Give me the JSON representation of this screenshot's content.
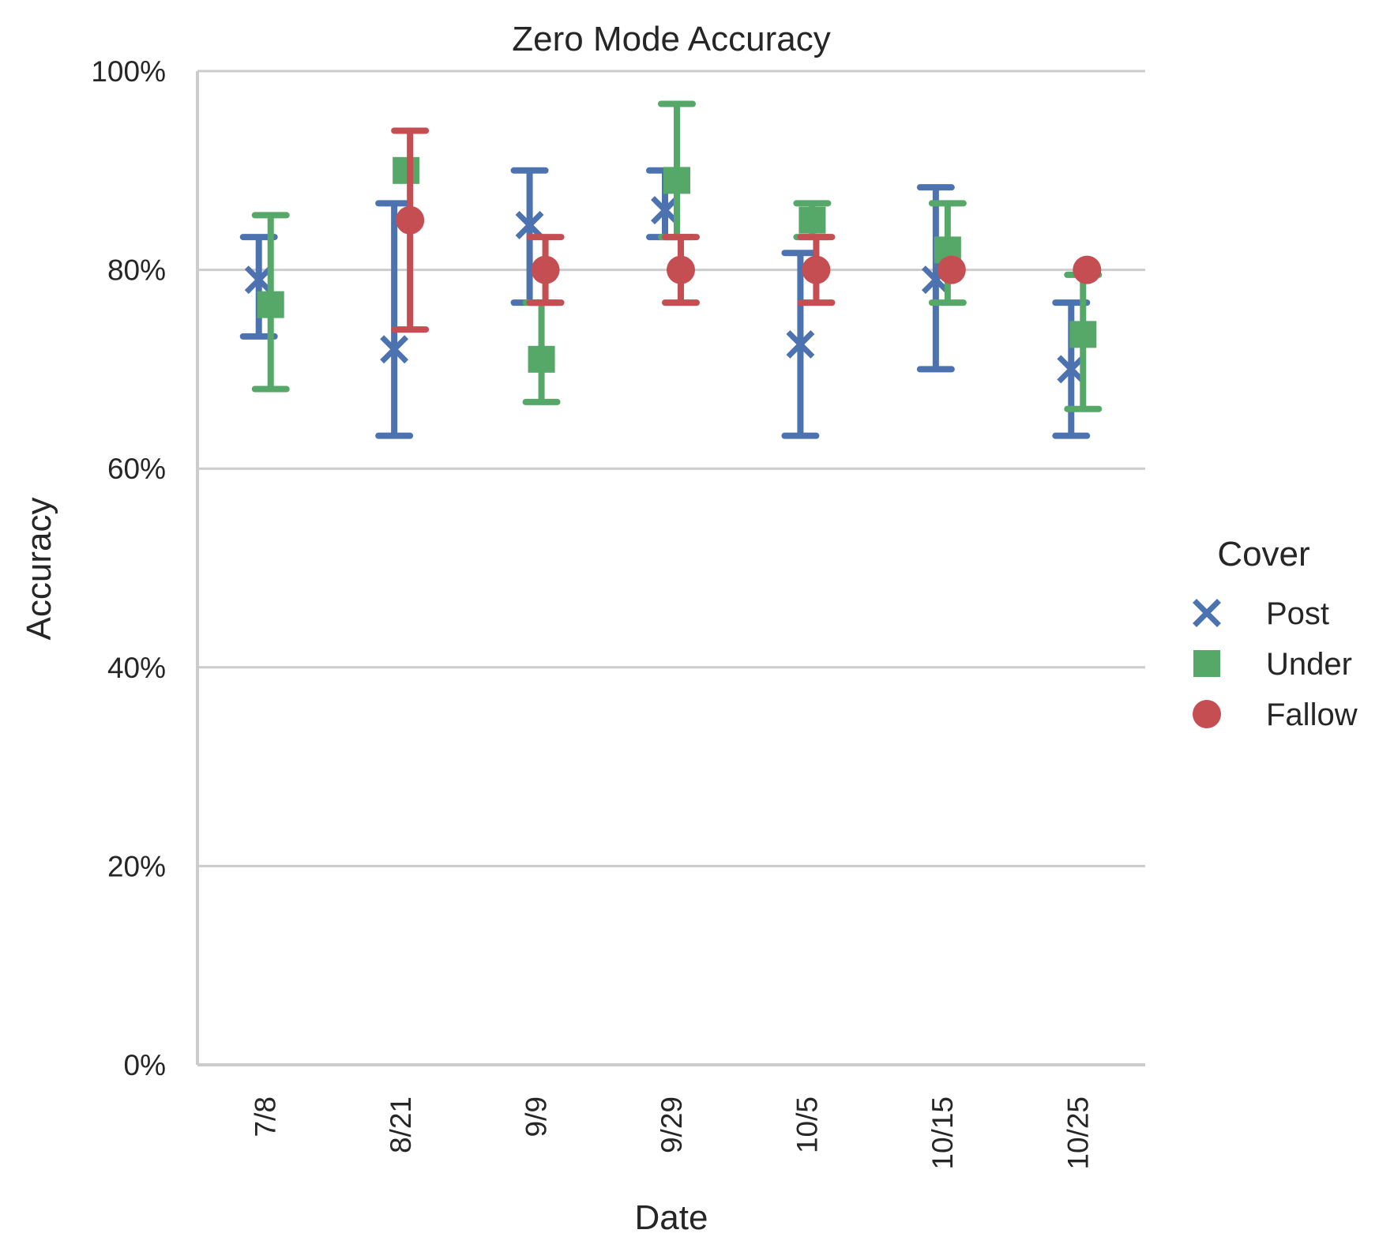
{
  "chart_data": {
    "type": "scatter",
    "title": "Zero Mode Accuracy",
    "xlabel": "Date",
    "ylabel": "Accuracy",
    "categories": [
      "7/8",
      "8/21",
      "9/9",
      "9/29",
      "10/5",
      "10/15",
      "10/25"
    ],
    "ylim": [
      0,
      100
    ],
    "yticks": [
      "0%",
      "20%",
      "40%",
      "60%",
      "80%",
      "100%"
    ],
    "ytick_values": [
      0,
      20,
      40,
      60,
      80,
      100
    ],
    "grid": "horizontal",
    "legend": {
      "title": "Cover",
      "placement": "right"
    },
    "series": [
      {
        "name": "Post",
        "marker": "x",
        "color": "#4C72B0",
        "values": [
          79,
          72,
          84.5,
          86,
          72.5,
          79,
          70
        ],
        "err_low": [
          73.3,
          63.3,
          76.7,
          83.3,
          63.3,
          70,
          63.3
        ],
        "err_high": [
          83.3,
          86.7,
          90,
          90,
          81.7,
          88.3,
          76.7
        ]
      },
      {
        "name": "Under",
        "marker": "square",
        "color": "#55A868",
        "values": [
          76.5,
          90,
          71,
          89,
          85,
          82,
          73.5
        ],
        "err_low": [
          68,
          90,
          66.7,
          83.3,
          83.3,
          76.7,
          66
        ],
        "err_high": [
          85.5,
          90,
          76.7,
          96.7,
          86.7,
          86.7,
          79.5
        ]
      },
      {
        "name": "Fallow",
        "marker": "circle",
        "color": "#C44E52",
        "values": [
          null,
          85,
          80,
          80,
          80,
          80,
          80
        ],
        "err_low": [
          null,
          74,
          76.7,
          76.7,
          76.7,
          80,
          80
        ],
        "err_high": [
          null,
          94,
          83.3,
          83.3,
          83.3,
          80,
          80
        ]
      }
    ]
  }
}
